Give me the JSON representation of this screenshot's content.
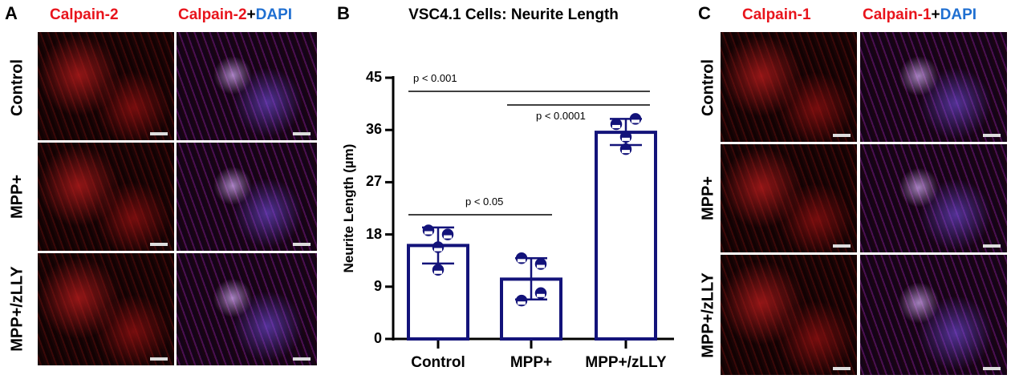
{
  "panel_a": {
    "letter": "A",
    "header1": "Calpain-2",
    "header2_red": "Calpain-2",
    "header2_plus": "+",
    "header2_blue": "DAPI",
    "rows": [
      "Control",
      "MPP+",
      "MPP+/zLLY"
    ]
  },
  "panel_c": {
    "letter": "C",
    "header1": "Calpain-1",
    "header2_red": "Calpain-1",
    "header2_plus": "+",
    "header2_blue": "DAPI",
    "rows": [
      "Control",
      "MPP+",
      "MPP+/zLLY"
    ]
  },
  "panel_b": {
    "letter": "B"
  },
  "colors": {
    "bar": "#13137a",
    "red": "#e8141c",
    "blue": "#1f6fd1"
  },
  "chart_data": {
    "type": "bar",
    "title": "VSC4.1 Cells: Neurite Length",
    "ylabel": "Neurite Length (µm)",
    "xlabel": "",
    "categories": [
      "Control",
      "MPP+",
      "MPP+/zLLY"
    ],
    "values": [
      16.1,
      10.3,
      35.6
    ],
    "error_upper": [
      19.2,
      13.9,
      37.9
    ],
    "error_lower": [
      13.0,
      6.8,
      33.4
    ],
    "points": [
      [
        18.7,
        18.0,
        15.8,
        11.9
      ],
      [
        13.9,
        12.9,
        7.9,
        6.6
      ],
      [
        37.9,
        37.0,
        34.8,
        32.7
      ]
    ],
    "ylim": [
      0,
      45
    ],
    "yticks": [
      "0",
      "9",
      "18",
      "27",
      "36",
      "45"
    ],
    "grid": false,
    "significance": [
      {
        "from": "Control",
        "to": "MPP+/zLLY",
        "label": "p < 0.001"
      },
      {
        "from": "MPP+",
        "to": "MPP+/zLLY",
        "label": "p < 0.0001"
      },
      {
        "from": "Control",
        "to": "MPP+",
        "label": "p < 0.05"
      }
    ]
  }
}
